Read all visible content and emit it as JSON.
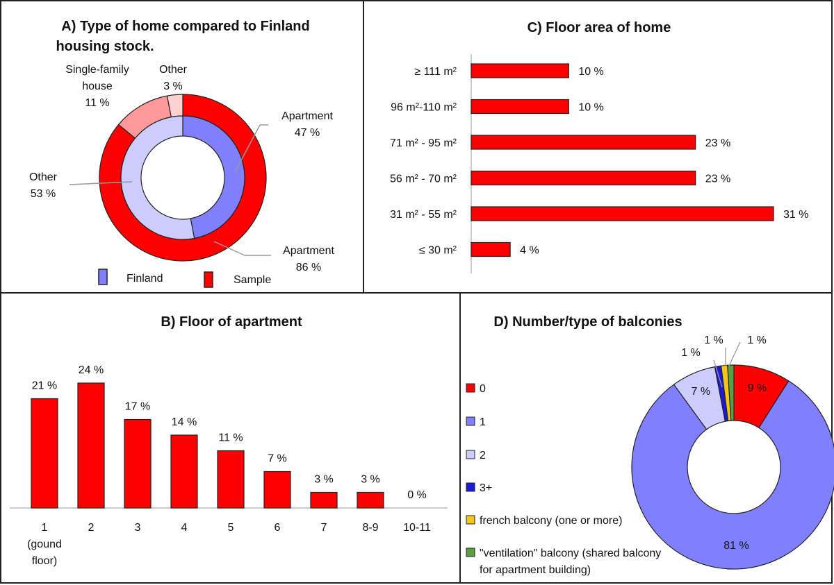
{
  "chart_data": [
    {
      "id": "A",
      "type": "pie",
      "title_line1": "A) Type of home compared to Finland",
      "title_line2": "housing stock.",
      "series": [
        {
          "name": "Sample",
          "ring": "outer",
          "slices": [
            {
              "category": "Apartment",
              "value": 86,
              "label": "86 %",
              "color": "#ff0000"
            },
            {
              "category": "Single-family house",
              "value": 11,
              "label": "11 %",
              "color": "#ff9999"
            },
            {
              "category": "Other",
              "value": 3,
              "label": "3 %",
              "color": "#ffd0d0"
            }
          ]
        },
        {
          "name": "Finland",
          "ring": "inner",
          "slices": [
            {
              "category": "Apartment",
              "value": 47,
              "label": "47 %",
              "color": "#8080ff"
            },
            {
              "category": "Other",
              "value": 53,
              "label": "53 %",
              "color": "#ccccff"
            }
          ]
        }
      ],
      "annotations": [
        {
          "lines": [
            "Single-family",
            "house",
            "11 %"
          ]
        },
        {
          "lines": [
            "Other",
            "3 %"
          ]
        },
        {
          "lines": [
            "Apartment",
            "47 %"
          ]
        },
        {
          "lines": [
            "Other",
            "53 %"
          ]
        },
        {
          "lines": [
            "Apartment",
            "86 %"
          ]
        }
      ],
      "legend": [
        {
          "name": "Finland",
          "color": "#8080ff"
        },
        {
          "name": "Sample",
          "color": "#ff0000"
        }
      ]
    },
    {
      "id": "C",
      "type": "bar",
      "orientation": "horizontal",
      "title": "C) Floor area of home",
      "categories": [
        "≥ 111 m²",
        "96 m²-110 m²",
        "71 m² - 95 m²",
        "56 m² - 70 m²",
        "31 m² - 55 m²",
        "≤ 30 m²"
      ],
      "values": [
        10,
        10,
        23,
        23,
        31,
        4
      ],
      "value_labels": [
        "10 %",
        "10 %",
        "23 %",
        "23 %",
        "31 %",
        "4 %"
      ],
      "xlim": [
        0,
        31
      ],
      "color": "#ff0000"
    },
    {
      "id": "B",
      "type": "bar",
      "title": "B) Floor of apartment",
      "categories": [
        "1",
        "2",
        "3",
        "4",
        "5",
        "6",
        "7",
        "8-9",
        "10-11"
      ],
      "category_sublabels": [
        "(gound",
        "floor)"
      ],
      "values": [
        21,
        24,
        17,
        14,
        11,
        7,
        3,
        3,
        0
      ],
      "value_labels": [
        "21 %",
        "24 %",
        "17 %",
        "14 %",
        "11 %",
        "7 %",
        "3 %",
        "3 %",
        "0 %"
      ],
      "ylim": [
        0,
        24
      ],
      "color": "#ff0000"
    },
    {
      "id": "D",
      "type": "pie",
      "title": "D) Number/type of balconies",
      "slices": [
        {
          "category": "0",
          "value": 9,
          "label": "9 %",
          "color": "#ff0000"
        },
        {
          "category": "1",
          "value": 81,
          "label": "81 %",
          "color": "#8080ff"
        },
        {
          "category": "2",
          "value": 7,
          "label": "7 %",
          "color": "#ccccff"
        },
        {
          "category": "3+",
          "value": 1,
          "label": "1 %",
          "color": "#1a1ad8"
        },
        {
          "category": "french balcony (one or more)",
          "value": 1,
          "label": "1 %",
          "color": "#f5c518"
        },
        {
          "category": "\"ventilation\" balcony (shared balcony",
          "category_line2": "for apartment building)",
          "value": 1,
          "label": "1 %",
          "color": "#5aa040"
        }
      ]
    }
  ]
}
